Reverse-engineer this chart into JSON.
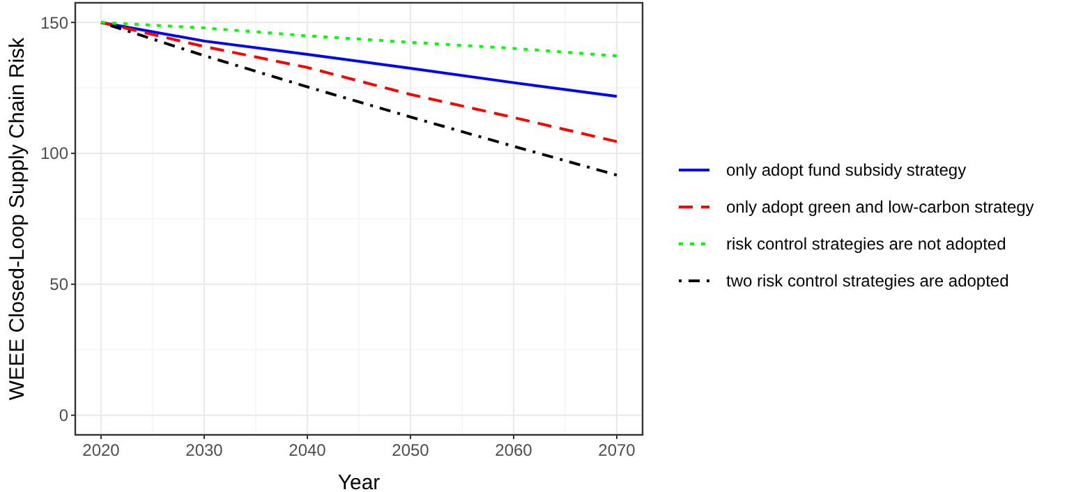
{
  "chart_data": {
    "type": "line",
    "xlabel": "Year",
    "ylabel": "WEEE Closed-Loop Supply Chain Risk",
    "x": [
      2020,
      2030,
      2040,
      2050,
      2060,
      2070
    ],
    "xlim": [
      2017.5,
      2072.5
    ],
    "xticks": [
      2020,
      2030,
      2040,
      2050,
      2060,
      2070
    ],
    "ylim": [
      -7.5,
      157.5
    ],
    "yticks": [
      0,
      50,
      100,
      150
    ],
    "grid": true,
    "legend": "right",
    "marker": "none",
    "series": [
      {
        "name": "only adopt fund subsidy strategy",
        "color": "#0000ff",
        "line_style": "solid",
        "values": [
          150,
          142.9,
          137.8,
          132.5,
          127.0,
          121.8
        ]
      },
      {
        "name": "only adopt green and low-carbon strategy",
        "color": "#ff0000",
        "line_style": "dashed",
        "values": [
          150,
          140.8,
          132.8,
          122.5,
          113.7,
          104.5
        ]
      },
      {
        "name": "risk control strategies are not adopted",
        "color": "#00ff00",
        "line_style": "dotted",
        "values": [
          150,
          147.9,
          144.9,
          142.4,
          140.1,
          137.2
        ]
      },
      {
        "name": "two risk control strategies are adopted",
        "color": "#000000",
        "line_style": "dashdot",
        "values": [
          150,
          137.3,
          125.4,
          113.9,
          102.7,
          91.7
        ]
      }
    ]
  }
}
